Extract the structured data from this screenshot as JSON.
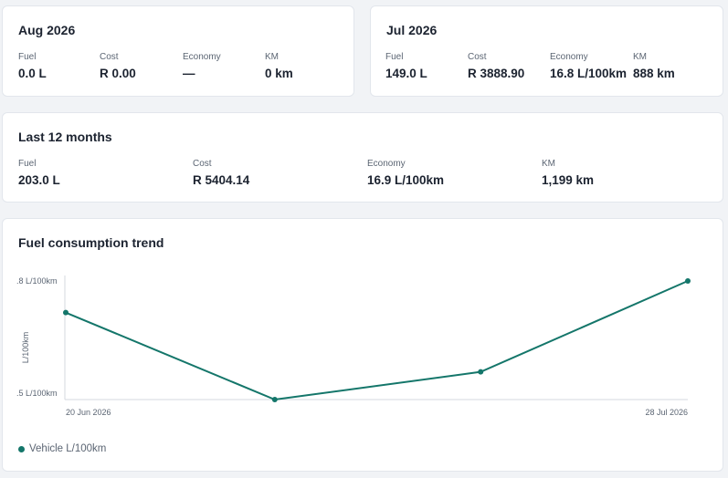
{
  "aug": {
    "title": "Aug 2026",
    "stats": [
      {
        "label": "Fuel",
        "value": "0.0 L"
      },
      {
        "label": "Cost",
        "value": "R 0.00"
      },
      {
        "label": "Economy",
        "value": "—"
      },
      {
        "label": "KM",
        "value": "0 km"
      }
    ]
  },
  "jul": {
    "title": "Jul 2026",
    "stats": [
      {
        "label": "Fuel",
        "value": "149.0 L"
      },
      {
        "label": "Cost",
        "value": "R 3888.90"
      },
      {
        "label": "Economy",
        "value": "16.8 L/100km"
      },
      {
        "label": "KM",
        "value": "888 km"
      }
    ]
  },
  "last12": {
    "title": "Last 12 months",
    "stats": [
      {
        "label": "Fuel",
        "value": "203.0 L"
      },
      {
        "label": "Cost",
        "value": "R 5404.14"
      },
      {
        "label": "Economy",
        "value": "16.9 L/100km"
      },
      {
        "label": "KM",
        "value": "1,199 km"
      }
    ]
  },
  "trend": {
    "title": "Fuel consumption trend",
    "legend_label": "Vehicle L/100km"
  },
  "colors": {
    "series": "#14766a",
    "axis": "#d5d9df"
  },
  "chart_data": {
    "type": "line",
    "ylabel": "L/100km",
    "ytick_labels": [
      ".8 L/100km",
      ".5 L/100km"
    ],
    "ylim": [
      16.5,
      16.8
    ],
    "xtick_labels": [
      "20 Jun 2026",
      "28 Jul 2026"
    ],
    "series": [
      {
        "name": "Vehicle L/100km",
        "x": [
          "20 Jun 2026",
          "",
          "",
          "28 Jul 2026"
        ],
        "values": [
          16.72,
          16.5,
          16.57,
          16.8
        ]
      }
    ]
  }
}
